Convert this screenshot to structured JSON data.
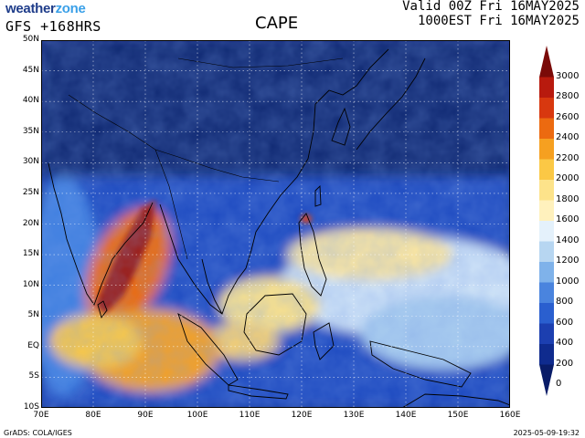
{
  "header": {
    "brand_a": "weather",
    "brand_b": "zone",
    "model_run": "GFS +168HRS",
    "title": "CAPE",
    "valid_line_1": "Valid 00Z Fri 16MAY2025",
    "valid_line_2": "1000EST Fri 16MAY2025"
  },
  "map": {
    "lat_labels": [
      "50N",
      "45N",
      "40N",
      "35N",
      "30N",
      "25N",
      "20N",
      "15N",
      "10N",
      "5N",
      "EQ",
      "5S",
      "10S"
    ],
    "lon_labels": [
      "70E",
      "80E",
      "90E",
      "100E",
      "110E",
      "120E",
      "130E",
      "140E",
      "150E",
      "160E"
    ],
    "lat_range": [
      -10,
      50
    ],
    "lon_range": [
      70,
      160
    ]
  },
  "colorbar": {
    "labels": [
      "3000",
      "2800",
      "2600",
      "2400",
      "2200",
      "2000",
      "1800",
      "1600",
      "1400",
      "1200",
      "1000",
      "800",
      "600",
      "400",
      "200",
      "0"
    ],
    "colors": [
      "#7a0a08",
      "#b81a0e",
      "#d8380f",
      "#ec6a10",
      "#f6a020",
      "#fbc845",
      "#fde38a",
      "#fff1bd",
      "#e4f1fb",
      "#b7d6f1",
      "#7fb2ea",
      "#4a84de",
      "#2a5fcf",
      "#1c3fb0",
      "#0f2b8e",
      "#091c68"
    ]
  },
  "footer": {
    "credit": "GrADS: COLA/IGES",
    "timestamp": "2025-05-09-19:32"
  }
}
